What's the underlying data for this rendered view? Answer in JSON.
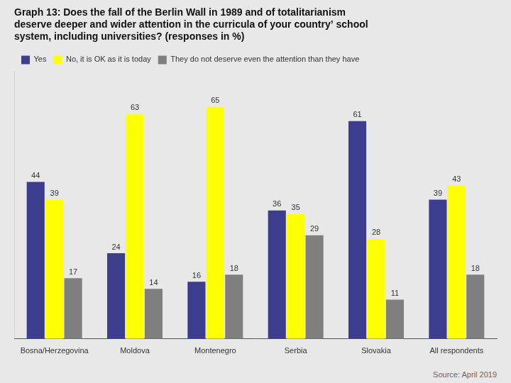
{
  "chart_data": {
    "type": "bar",
    "title": "Graph 13: Does the fall of the Berlin Wall in 1989 and of totalitarianism\ndeserve deeper and wider attention in the curricula of your country’ school\nsystem, including universities? (responses in %)",
    "categories": [
      "Bosna/Herzegovina",
      "Moldova",
      "Montenegro",
      "Serbia",
      "Slovakia",
      "All respondents"
    ],
    "series": [
      {
        "name": "Yes",
        "color": "#3D3D8F",
        "values": [
          44,
          24,
          16,
          36,
          61,
          39
        ]
      },
      {
        "name": "No, it is OK as it is today",
        "color": "#FFFF00",
        "values": [
          39,
          63,
          65,
          35,
          28,
          43
        ]
      },
      {
        "name": "They do not deserve even the attention than they have",
        "color": "#7F7F7F",
        "values": [
          17,
          14,
          18,
          29,
          11,
          18
        ]
      }
    ],
    "ylim": [
      0,
      75
    ],
    "grid": false,
    "legend": "upper left",
    "data_labels": true,
    "tick_labels": "x",
    "annotations": [
      "Source: April 2019"
    ]
  }
}
